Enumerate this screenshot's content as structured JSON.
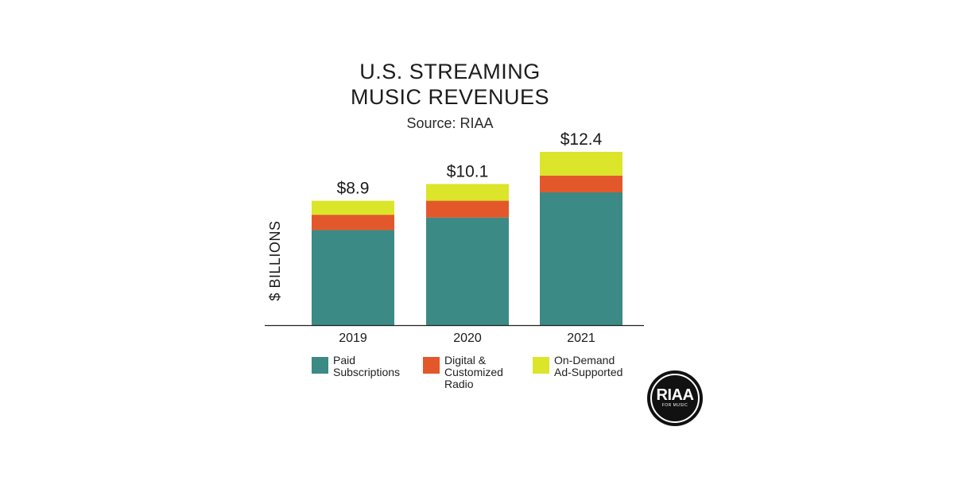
{
  "chart_data": {
    "type": "bar",
    "stacked": true,
    "title_lines": [
      "U.S. STREAMING",
      "MUSIC REVENUES"
    ],
    "subtitle": "Source: RIAA",
    "ylabel": "$ BILLIONS",
    "xlabel": "",
    "ylim": [
      0,
      12.4
    ],
    "grid": false,
    "categories": [
      "2019",
      "2020",
      "2021"
    ],
    "totals_labels": [
      "$8.9",
      "$10.1",
      "$12.4"
    ],
    "totals": [
      8.9,
      10.1,
      12.4
    ],
    "series": [
      {
        "name": "Paid\nSubscriptions",
        "color": "#3b8a85",
        "values": [
          6.8,
          7.7,
          9.5
        ]
      },
      {
        "name": "Digital &\nCustomized\nRadio",
        "color": "#e3582b",
        "values": [
          1.1,
          1.2,
          1.2
        ]
      },
      {
        "name": "On-Demand\nAd-Supported",
        "color": "#dbe52a",
        "values": [
          1.0,
          1.2,
          1.7
        ]
      }
    ],
    "legend_position": "bottom"
  },
  "logo": {
    "text": "RIAA",
    "subtext": "FOR MUSIC"
  }
}
